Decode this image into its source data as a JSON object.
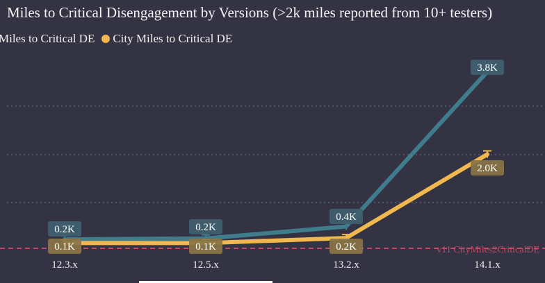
{
  "chart_data": {
    "type": "line",
    "title": "Miles to Critical Disengagement by Versions (>2k miles reported from 10+ testers)",
    "categories": [
      "12.3.x",
      "12.5.x",
      "13.2.x",
      "14.1.x"
    ],
    "series": [
      {
        "name": "Miles to Critical DE",
        "color": "#3f7d8c",
        "values": [
          150,
          170,
          430,
          3800
        ],
        "labels": [
          "0.2K",
          "0.2K",
          "0.4K",
          "3.8K"
        ]
      },
      {
        "name": "City Miles to Critical DE",
        "color": "#f0b84e",
        "values": [
          70,
          70,
          180,
          2000
        ],
        "labels": [
          "0.1K",
          "0.1K",
          "0.2K",
          "2.0K"
        ]
      }
    ],
    "reference_line": {
      "label": "v11 CityMiles2CriticalDE",
      "value": 0,
      "color": "#d0506a"
    },
    "ylim": [
      0,
      4000
    ],
    "grid": true,
    "legend_position": "top-left",
    "xlabel": "",
    "ylabel": ""
  }
}
